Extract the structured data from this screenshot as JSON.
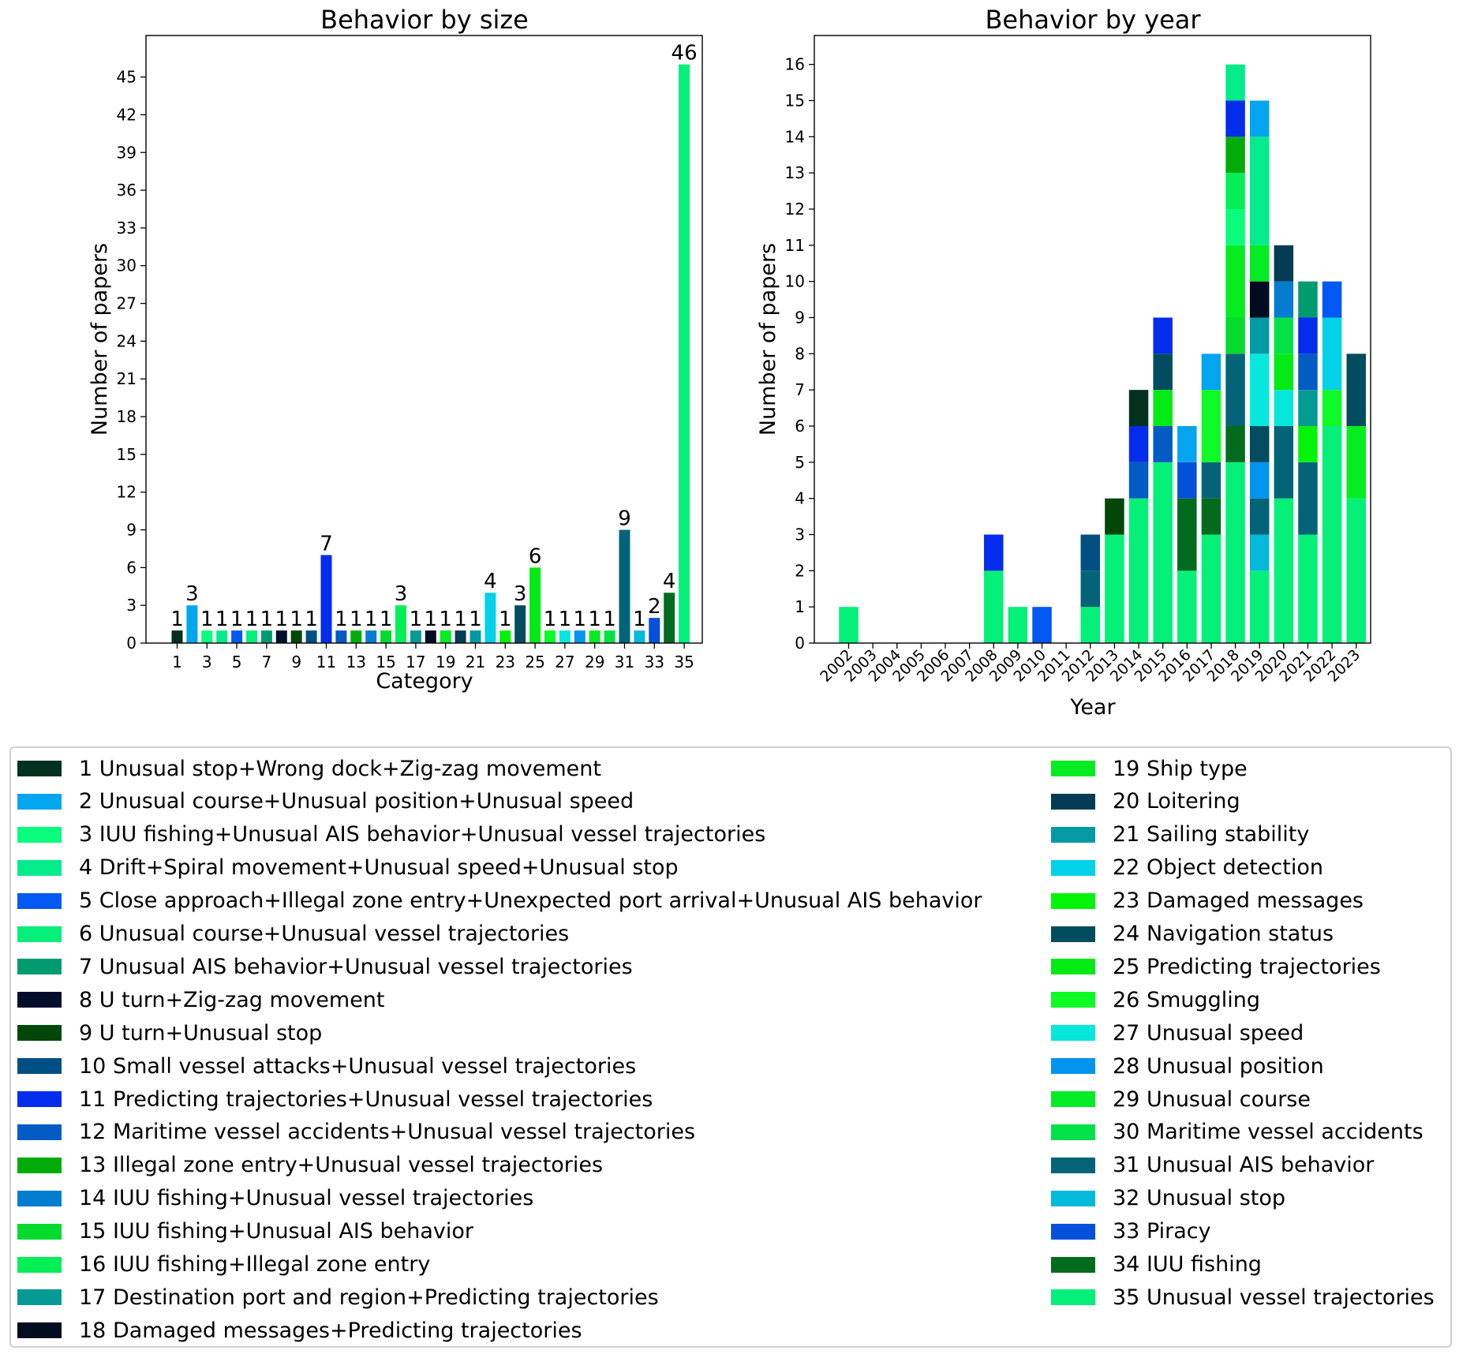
{
  "chart_data": [
    {
      "type": "bar",
      "title": "Behavior by size",
      "xlabel": "Category",
      "ylabel": "Number of papers",
      "categories": [
        1,
        2,
        3,
        4,
        5,
        6,
        7,
        8,
        9,
        10,
        11,
        12,
        13,
        14,
        15,
        16,
        17,
        18,
        19,
        20,
        21,
        22,
        23,
        24,
        25,
        26,
        27,
        28,
        29,
        30,
        31,
        32,
        33,
        34,
        35
      ],
      "values": [
        1,
        3,
        1,
        1,
        1,
        1,
        1,
        1,
        1,
        1,
        7,
        1,
        1,
        1,
        1,
        3,
        1,
        1,
        1,
        1,
        1,
        4,
        1,
        3,
        6,
        1,
        1,
        1,
        1,
        1,
        9,
        1,
        2,
        4,
        46
      ],
      "data_labels": [
        "1",
        "3",
        "1",
        "1",
        "1",
        "1",
        "1",
        "1",
        "1",
        "1",
        "7",
        "1",
        "1",
        "1",
        "1",
        "3",
        "1",
        "1",
        "1",
        "1",
        "1",
        "4",
        "1",
        "3",
        "6",
        "1",
        "1",
        "1",
        "1",
        "1",
        "9",
        "1",
        "2",
        "4",
        "46"
      ],
      "xticks": [
        "1",
        "3",
        "5",
        "7",
        "9",
        "11",
        "13",
        "15",
        "17",
        "19",
        "21",
        "23",
        "25",
        "27",
        "29",
        "31",
        "33",
        "35"
      ],
      "yticks": [
        "0",
        "3",
        "6",
        "9",
        "12",
        "15",
        "18",
        "21",
        "24",
        "27",
        "30",
        "33",
        "36",
        "39",
        "42",
        "45"
      ],
      "ylim": [
        0,
        48.3
      ],
      "grid": false
    },
    {
      "type": "bar",
      "stacked": true,
      "title": "Behavior by year",
      "xlabel": "Year",
      "ylabel": "Number of papers",
      "categories": [
        "2002",
        "2003",
        "2004",
        "2005",
        "2006",
        "2007",
        "2008",
        "2009",
        "2010",
        "2011",
        "2012",
        "2013",
        "2014",
        "2015",
        "2016",
        "2017",
        "2018",
        "2019",
        "2020",
        "2021",
        "2022",
        "2023"
      ],
      "yticks": [
        "0",
        "1",
        "2",
        "3",
        "4",
        "5",
        "6",
        "7",
        "8",
        "9",
        "10",
        "11",
        "12",
        "13",
        "14",
        "15",
        "16"
      ],
      "ylim": [
        0,
        16.8
      ],
      "grid": false,
      "stacks": [
        [
          [
            "35",
            1
          ]
        ],
        [],
        [],
        [],
        [],
        [],
        [
          [
            "35",
            2
          ],
          [
            "11",
            1
          ]
        ],
        [
          [
            "35",
            1
          ]
        ],
        [
          [
            "5",
            1
          ]
        ],
        [],
        [
          [
            "35",
            1
          ],
          [
            "31",
            1
          ],
          [
            "10",
            1
          ]
        ],
        [
          [
            "35",
            3
          ],
          [
            "9",
            1
          ]
        ],
        [
          [
            "35",
            4
          ],
          [
            "12",
            1
          ],
          [
            "11",
            1
          ],
          [
            "1",
            1
          ]
        ],
        [
          [
            "35",
            5
          ],
          [
            "12",
            1
          ],
          [
            "25",
            1
          ],
          [
            "24",
            1
          ],
          [
            "11",
            1
          ]
        ],
        [
          [
            "35",
            2
          ],
          [
            "34",
            2
          ],
          [
            "33",
            1
          ],
          [
            "2",
            1
          ]
        ],
        [
          [
            "35",
            3
          ],
          [
            "34",
            1
          ],
          [
            "31",
            1
          ],
          [
            "26",
            2
          ],
          [
            "2",
            1
          ]
        ],
        [
          [
            "35",
            5
          ],
          [
            "34",
            1
          ],
          [
            "31",
            2
          ],
          [
            "15",
            1
          ],
          [
            "19",
            2
          ],
          [
            "3",
            1
          ],
          [
            "16",
            1
          ],
          [
            "13",
            1
          ],
          [
            "11",
            1
          ],
          [
            "4",
            1
          ]
        ],
        [
          [
            "35",
            2
          ],
          [
            "32",
            1
          ],
          [
            "31",
            1
          ],
          [
            "28",
            1
          ],
          [
            "24",
            1
          ],
          [
            "27",
            2
          ],
          [
            "21",
            1
          ],
          [
            "18",
            1
          ],
          [
            "29",
            1
          ],
          [
            "4",
            3
          ],
          [
            "2",
            1
          ]
        ],
        [
          [
            "35",
            4
          ],
          [
            "31",
            2
          ],
          [
            "27",
            1
          ],
          [
            "25",
            1
          ],
          [
            "30",
            1
          ],
          [
            "14",
            1
          ],
          [
            "20",
            1
          ]
        ],
        [
          [
            "35",
            3
          ],
          [
            "31",
            2
          ],
          [
            "23",
            1
          ],
          [
            "17",
            1
          ],
          [
            "12",
            1
          ],
          [
            "11",
            1
          ],
          [
            "7",
            1
          ]
        ],
        [
          [
            "35",
            6
          ],
          [
            "26",
            1
          ],
          [
            "22",
            2
          ],
          [
            "5",
            1
          ]
        ],
        [
          [
            "35",
            4
          ],
          [
            "19",
            2
          ],
          [
            "24",
            2
          ]
        ]
      ]
    }
  ],
  "legend": {
    "items": [
      {
        "label": "1 Unusual stop+Wrong dock+Zig-zag movement",
        "color": "#03301f"
      },
      {
        "label": "2 Unusual course+Unusual position+Unusual speed",
        "color": "#04a5ef"
      },
      {
        "label": "3 IUU fishing+Unusual AIS behavior+Unusual vessel trajectories",
        "color": "#0afc7c"
      },
      {
        "label": "4 Drift+Spiral movement+Unusual speed+Unusual stop",
        "color": "#04eb8c"
      },
      {
        "label": "5 Close approach+Illegal zone entry+Unexpected port arrival+Unusual AIS behavior",
        "color": "#0358f4"
      },
      {
        "label": "6 Unusual course+Unusual vessel trajectories",
        "color": "#05ee7a"
      },
      {
        "label": "7 Unusual AIS behavior+Unusual vessel trajectories",
        "color": "#019b72"
      },
      {
        "label": "8 U turn+Zig-zag movement",
        "color": "#020e2b"
      },
      {
        "label": "9 U turn+Unusual stop",
        "color": "#01470a"
      },
      {
        "label": "10 Small vessel attacks+Unusual vessel trajectories",
        "color": "#024f83"
      },
      {
        "label": "11 Predicting trajectories+Unusual vessel trajectories",
        "color": "#032cec"
      },
      {
        "label": "12 Maritime vessel accidents+Unusual vessel trajectories",
        "color": "#035bc4"
      },
      {
        "label": "13 Illegal zone entry+Unusual vessel trajectories",
        "color": "#02ac08"
      },
      {
        "label": "14 IUU fishing+Unusual vessel trajectories",
        "color": "#047dd1"
      },
      {
        "label": "15 IUU fishing+Unusual AIS behavior",
        "color": "#04db2c"
      },
      {
        "label": "16 IUU fishing+Illegal zone entry",
        "color": "#03ef55"
      },
      {
        "label": "17 Destination port and region+Predicting trajectories",
        "color": "#039b94"
      },
      {
        "label": "18 Damaged messages+Predicting trajectories",
        "color": "#020c20"
      },
      {
        "label": "19 Ship type",
        "color": "#05ed21"
      },
      {
        "label": "20 Loitering",
        "color": "#033c54"
      },
      {
        "label": "21 Sailing stability",
        "color": "#049aa5"
      },
      {
        "label": "22 Object detection",
        "color": "#03d1e8"
      },
      {
        "label": "23 Damaged messages",
        "color": "#04f409"
      },
      {
        "label": "24 Navigation status",
        "color": "#024c5f"
      },
      {
        "label": "25 Predicting trajectories",
        "color": "#04ea14"
      },
      {
        "label": "26 Smuggling",
        "color": "#0efa26"
      },
      {
        "label": "27 Unusual speed",
        "color": "#05e8db"
      },
      {
        "label": "28 Unusual position",
        "color": "#0394ef"
      },
      {
        "label": "29 Unusual course",
        "color": "#04ec24"
      },
      {
        "label": "30 Maritime vessel accidents",
        "color": "#03e149"
      },
      {
        "label": "31 Unusual AIS behavior",
        "color": "#036478"
      },
      {
        "label": "32 Unusual stop",
        "color": "#04b9da"
      },
      {
        "label": "33 Piracy",
        "color": "#0350db"
      },
      {
        "label": "34 IUU fishing",
        "color": "#026b1e"
      },
      {
        "label": "35 Unusual vessel trajectories",
        "color": "#04f079"
      }
    ]
  }
}
